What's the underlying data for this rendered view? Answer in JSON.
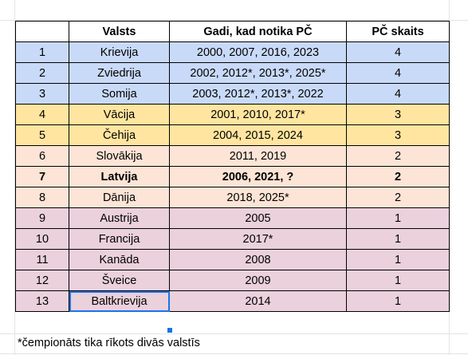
{
  "table": {
    "headers": [
      "",
      "Valsts",
      "Gadi, kad notika PČ",
      "PČ skaits"
    ],
    "rows": [
      {
        "n": "1",
        "country": "Krievija",
        "years": "2000, 2007, 2016, 2023",
        "count": "4"
      },
      {
        "n": "2",
        "country": "Zviedrija",
        "years": "2002, 2012*, 2013*, 2025*",
        "count": "4"
      },
      {
        "n": "3",
        "country": "Somija",
        "years": "2003, 2012*, 2013*, 2022",
        "count": "4"
      },
      {
        "n": "4",
        "country": "Vācija",
        "years": "2001, 2010, 2017*",
        "count": "3"
      },
      {
        "n": "5",
        "country": "Čehija",
        "years": "2004, 2015, 2024",
        "count": "3"
      },
      {
        "n": "6",
        "country": "Slovākija",
        "years": "2011, 2019",
        "count": "2"
      },
      {
        "n": "7",
        "country": "Latvija",
        "years": "2006, 2021, ?",
        "count": "2"
      },
      {
        "n": "8",
        "country": "Dānija",
        "years": "2018, 2025*",
        "count": "2"
      },
      {
        "n": "9",
        "country": "Austrija",
        "years": "2005",
        "count": "1"
      },
      {
        "n": "10",
        "country": "Francija",
        "years": "2017*",
        "count": "1"
      },
      {
        "n": "11",
        "country": "Kanāda",
        "years": "2008",
        "count": "1"
      },
      {
        "n": "12",
        "country": "Šveice",
        "years": "2009",
        "count": "1"
      },
      {
        "n": "13",
        "country": "Baltkrievija",
        "years": "2014",
        "count": "1"
      }
    ]
  },
  "footnote": "*čempionāts tika rīkots divās valstīs",
  "colors": {
    "group_blue": "#c9daf8",
    "group_gold": "#ffe5a0",
    "group_peach": "#fce4d6",
    "group_pink": "#ead1dc",
    "selection": "#1a73e8"
  }
}
